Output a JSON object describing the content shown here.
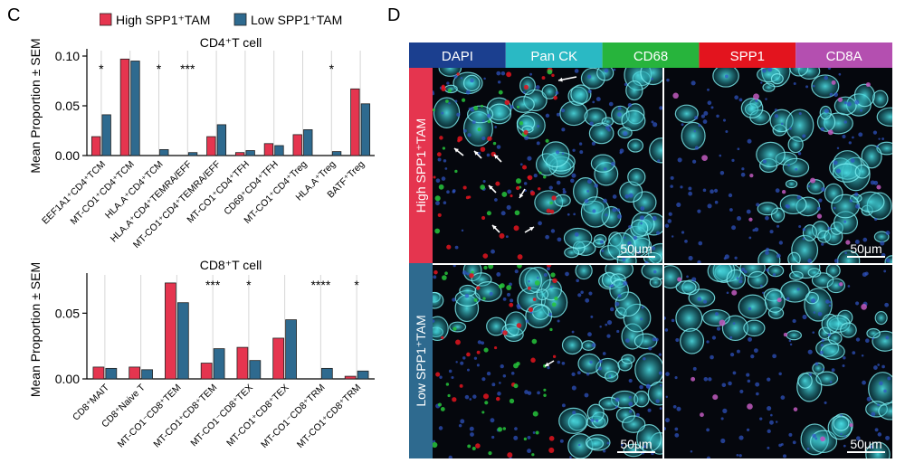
{
  "panels": {
    "left_letter": "C",
    "right_letter": "D"
  },
  "legend": {
    "high_label": "High SPP1⁺TAM",
    "low_label": "Low SPP1⁺TAM",
    "high_color": "#e5354f",
    "low_color": "#2e6a8f"
  },
  "chart_data": [
    {
      "type": "bar",
      "title": "CD4⁺T cell",
      "ylabel": "Mean Proportion ± SEM",
      "ylim": [
        0,
        0.1
      ],
      "yticks": [
        "0.00",
        "0.05",
        "0.10"
      ],
      "ytick_values": [
        0,
        0.05,
        0.1
      ],
      "categories": [
        "EEF1A1⁺CD4⁺TCM",
        "MT-CO1⁺CD4⁺TCM",
        "HLA.A⁺CD4⁺TCM",
        "HLA.A⁺CD4⁺TEMRA/EFF",
        "MT-CO1⁺CD4⁺TEMRA/EFF",
        "MT-CO1⁺CD4⁺TFH",
        "CD69⁺CD4⁺TFH",
        "MT-CO1⁺CD4⁺Treg",
        "HLA.A⁺Treg",
        "BATF⁺Treg"
      ],
      "series": [
        {
          "name": "High SPP1⁺TAM",
          "values": [
            0.019,
            0.097,
            0.0,
            0.0,
            0.019,
            0.003,
            0.012,
            0.021,
            0.0,
            0.067
          ]
        },
        {
          "name": "Low SPP1⁺TAM",
          "values": [
            0.041,
            0.095,
            0.006,
            0.003,
            0.031,
            0.005,
            0.01,
            0.026,
            0.004,
            0.052
          ]
        }
      ],
      "significance": [
        "*",
        "",
        "*",
        "***",
        "",
        "",
        "",
        "",
        "*",
        ""
      ]
    },
    {
      "type": "bar",
      "title": "CD8⁺T cell",
      "ylabel": "Mean Proportion ± SEM",
      "ylim": [
        0,
        0.075
      ],
      "yticks": [
        "0.00",
        "0.05"
      ],
      "ytick_values": [
        0,
        0.05
      ],
      "categories": [
        "CD8⁺MAIT",
        "CD8⁺Naive T",
        "MT-CO1⁻CD8⁺TEM",
        "MT-CO1⁺CD8⁺TEM",
        "MT-CO1⁻CD8⁺TEX",
        "MT-CO1⁺CD8⁺TEX",
        "MT-CO1⁻CD8⁺TRM",
        "MT-CO1⁺CD8⁺TRM"
      ],
      "series": [
        {
          "name": "High SPP1⁺TAM",
          "values": [
            0.009,
            0.009,
            0.073,
            0.012,
            0.024,
            0.031,
            0.0,
            0.002
          ]
        },
        {
          "name": "Low SPP1⁺TAM",
          "values": [
            0.008,
            0.007,
            0.058,
            0.023,
            0.014,
            0.045,
            0.008,
            0.006
          ]
        }
      ],
      "significance": [
        "",
        "",
        "",
        "***",
        "*",
        "",
        "****",
        "*"
      ]
    }
  ],
  "microscopy": {
    "channels": [
      {
        "name": "DAPI",
        "color": "#1b3f8f"
      },
      {
        "name": "Pan CK",
        "color": "#2ab9c4"
      },
      {
        "name": "CD68",
        "color": "#27b43c"
      },
      {
        "name": "SPP1",
        "color": "#e3141e"
      },
      {
        "name": "CD8A",
        "color": "#b44fb0"
      }
    ],
    "rows": [
      {
        "label": "High SPP1⁺TAM",
        "color": "#e5354f"
      },
      {
        "label": "Low SPP1⁺TAM",
        "color": "#2e6a8f"
      }
    ],
    "scale_bar": "50μm"
  }
}
